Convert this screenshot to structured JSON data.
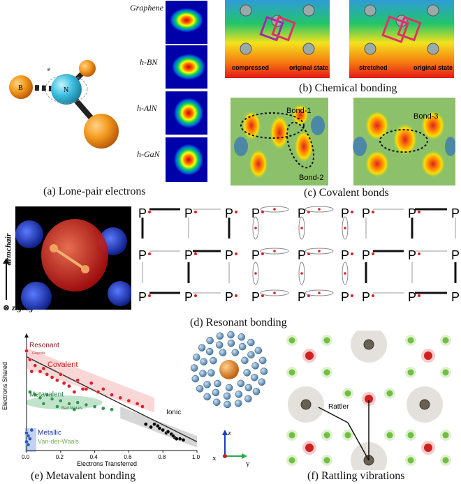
{
  "panel_a": {
    "atom_B": "B",
    "atom_N": "N",
    "electron": "e",
    "labels": [
      "Graphene",
      "h-BN",
      "h-AlN",
      "h-GaN"
    ],
    "caption": "(a) Lone-pair electrons"
  },
  "panel_b": {
    "left_compressed": "compressed",
    "left_original": "original state",
    "right_stretched": "stretched",
    "right_original": "original state",
    "caption": "(b) Chemical bonding"
  },
  "panel_c": {
    "bond1": "Bond-1",
    "bond2": "Bond-2",
    "bond3": "Bond-3",
    "caption": "(c) Covalent bonds"
  },
  "panel_d": {
    "armchair": "armchair",
    "zigzag": "zigzag",
    "atom": "P",
    "caption": "(d) Resonant bonding"
  },
  "panel_e": {
    "ylabel": "Electrons Shared",
    "xlabel": "Electrons Transferred",
    "regions": {
      "resonant": "Resonant",
      "covalent": "Covalent",
      "metavalent": "Metavalent",
      "bad_metals": "Bad Metals",
      "metallic": "Metallic",
      "vdw": "Van-der-Waals",
      "ionic": "Ionic",
      "graphite": "Graphite"
    },
    "caption": "(e) Metavalent bonding"
  },
  "panel_f": {
    "rattler": "Rattler",
    "axis_z": "z",
    "axis_x": "x",
    "axis_y": "y",
    "caption": "(f) Rattling vibrations"
  },
  "chart_data": {
    "type": "scatter",
    "xlabel": "Electrons Transferred",
    "ylabel": "Electrons Shared",
    "xlim": [
      0,
      1.0
    ],
    "ylim": [
      0,
      2.0
    ],
    "xticks": [
      "0.0",
      "0.2",
      "0.4",
      "0.6",
      "0.8",
      "1.0"
    ],
    "yticks": [
      "0.0",
      "0.5",
      "1.0",
      "1.5",
      "2.0"
    ],
    "series": [
      {
        "name": "Covalent",
        "color": "#e0202a",
        "points": [
          [
            0.0,
            1.7
          ],
          [
            0.02,
            1.55
          ],
          [
            0.05,
            1.45
          ],
          [
            0.08,
            1.35
          ],
          [
            0.1,
            1.4
          ],
          [
            0.12,
            1.3
          ],
          [
            0.15,
            1.25
          ],
          [
            0.18,
            1.2
          ],
          [
            0.2,
            1.3
          ],
          [
            0.25,
            1.1
          ],
          [
            0.3,
            1.2
          ],
          [
            0.35,
            1.05
          ],
          [
            0.38,
            1.15
          ],
          [
            0.42,
            1.0
          ],
          [
            0.45,
            1.05
          ],
          [
            0.5,
            0.95
          ],
          [
            0.55,
            0.9
          ],
          [
            0.6,
            0.85
          ],
          [
            0.65,
            0.8
          ],
          [
            0.68,
            0.75
          ],
          [
            0.03,
            1.35
          ],
          [
            0.22,
            1.15
          ],
          [
            0.28,
            1.0
          ],
          [
            0.33,
            1.05
          ]
        ]
      },
      {
        "name": "Metavalent",
        "color": "#2e9a52",
        "points": [
          [
            0.02,
            1.0
          ],
          [
            0.05,
            0.95
          ],
          [
            0.08,
            0.9
          ],
          [
            0.12,
            0.95
          ],
          [
            0.15,
            0.88
          ],
          [
            0.2,
            0.85
          ],
          [
            0.25,
            0.8
          ],
          [
            0.3,
            0.82
          ],
          [
            0.35,
            0.78
          ],
          [
            0.4,
            0.75
          ],
          [
            0.45,
            0.72
          ],
          [
            0.5,
            0.7
          ],
          [
            0.1,
            0.8
          ],
          [
            0.18,
            0.75
          ],
          [
            0.28,
            0.7
          ]
        ]
      },
      {
        "name": "Metallic",
        "color": "#2a55c8",
        "points": [
          [
            0.0,
            0.3
          ],
          [
            0.01,
            0.25
          ],
          [
            0.02,
            0.2
          ],
          [
            0.0,
            0.15
          ],
          [
            0.03,
            0.35
          ],
          [
            0.01,
            0.1
          ]
        ]
      },
      {
        "name": "Ionic",
        "color": "#000000",
        "points": [
          [
            0.7,
            0.45
          ],
          [
            0.73,
            0.4
          ],
          [
            0.75,
            0.45
          ],
          [
            0.78,
            0.38
          ],
          [
            0.8,
            0.35
          ],
          [
            0.82,
            0.3
          ],
          [
            0.85,
            0.28
          ],
          [
            0.87,
            0.22
          ],
          [
            0.9,
            0.2
          ],
          [
            0.92,
            0.18
          ],
          [
            0.86,
            0.25
          ],
          [
            0.83,
            0.32
          ],
          [
            0.88,
            0.2
          ],
          [
            0.77,
            0.42
          ]
        ]
      }
    ]
  }
}
